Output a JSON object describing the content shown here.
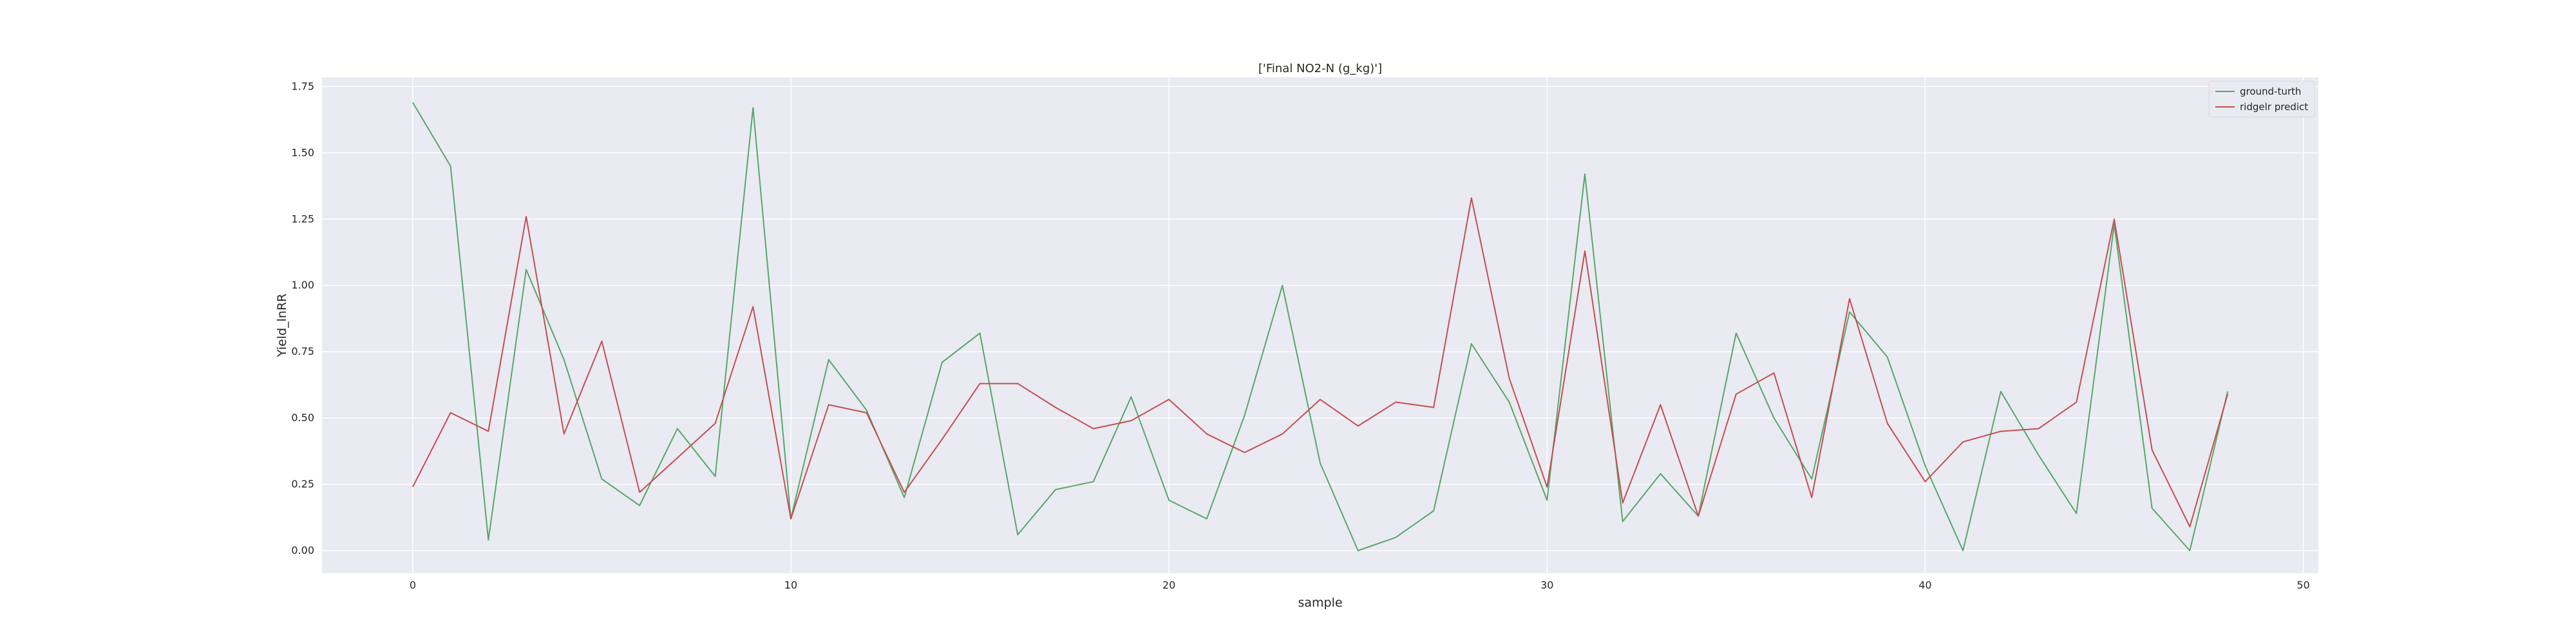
{
  "chart_data": {
    "type": "line",
    "title": "['Final NO2-N (g_kg)']",
    "xlabel": "sample",
    "ylabel": "Yield_lnRR",
    "xlim": [
      -2.4,
      50.4
    ],
    "ylim": [
      -0.085,
      1.785
    ],
    "x_ticks": [
      0,
      10,
      20,
      30,
      40,
      50
    ],
    "y_ticks": [
      0.0,
      0.25,
      0.5,
      0.75,
      1.0,
      1.25,
      1.5,
      1.75
    ],
    "x_tick_labels": [
      "0",
      "10",
      "20",
      "30",
      "40",
      "50"
    ],
    "y_tick_labels": [
      "0.00",
      "0.25",
      "0.50",
      "0.75",
      "1.00",
      "1.25",
      "1.50",
      "1.75"
    ],
    "grid": true,
    "legend_position": "top-right",
    "x": [
      0,
      1,
      2,
      3,
      4,
      5,
      6,
      7,
      8,
      9,
      10,
      11,
      12,
      13,
      14,
      15,
      16,
      17,
      18,
      19,
      20,
      21,
      22,
      23,
      24,
      25,
      26,
      27,
      28,
      29,
      30,
      31,
      32,
      33,
      34,
      35,
      36,
      37,
      38,
      39,
      40,
      41,
      42,
      43,
      44,
      45,
      46,
      47,
      48
    ],
    "series": [
      {
        "name": "ground-turth",
        "color": "#55a868",
        "values": [
          1.69,
          1.45,
          0.04,
          1.06,
          0.72,
          0.27,
          0.17,
          0.46,
          0.28,
          1.67,
          0.12,
          0.72,
          0.53,
          0.2,
          0.71,
          0.82,
          0.06,
          0.23,
          0.26,
          0.58,
          0.19,
          0.12,
          0.51,
          1.0,
          0.33,
          0.0,
          0.05,
          0.15,
          0.78,
          0.56,
          0.19,
          1.42,
          0.11,
          0.29,
          0.13,
          0.82,
          0.5,
          0.27,
          0.9,
          0.73,
          0.32,
          0.0,
          0.6,
          0.36,
          0.14,
          1.23,
          0.16,
          0.0,
          0.6
        ]
      },
      {
        "name": "ridgelr predict",
        "color": "#c44e52",
        "values": [
          0.24,
          0.52,
          0.45,
          1.26,
          0.44,
          0.79,
          0.22,
          0.35,
          0.48,
          0.92,
          0.12,
          0.55,
          0.52,
          0.22,
          0.42,
          0.63,
          0.63,
          0.54,
          0.46,
          0.49,
          0.57,
          0.44,
          0.37,
          0.44,
          0.57,
          0.47,
          0.56,
          0.54,
          1.33,
          0.65,
          0.24,
          1.13,
          0.18,
          0.55,
          0.13,
          0.59,
          0.67,
          0.2,
          0.95,
          0.48,
          0.26,
          0.41,
          0.45,
          0.46,
          0.56,
          1.25,
          0.38,
          0.09,
          0.59
        ]
      }
    ]
  }
}
